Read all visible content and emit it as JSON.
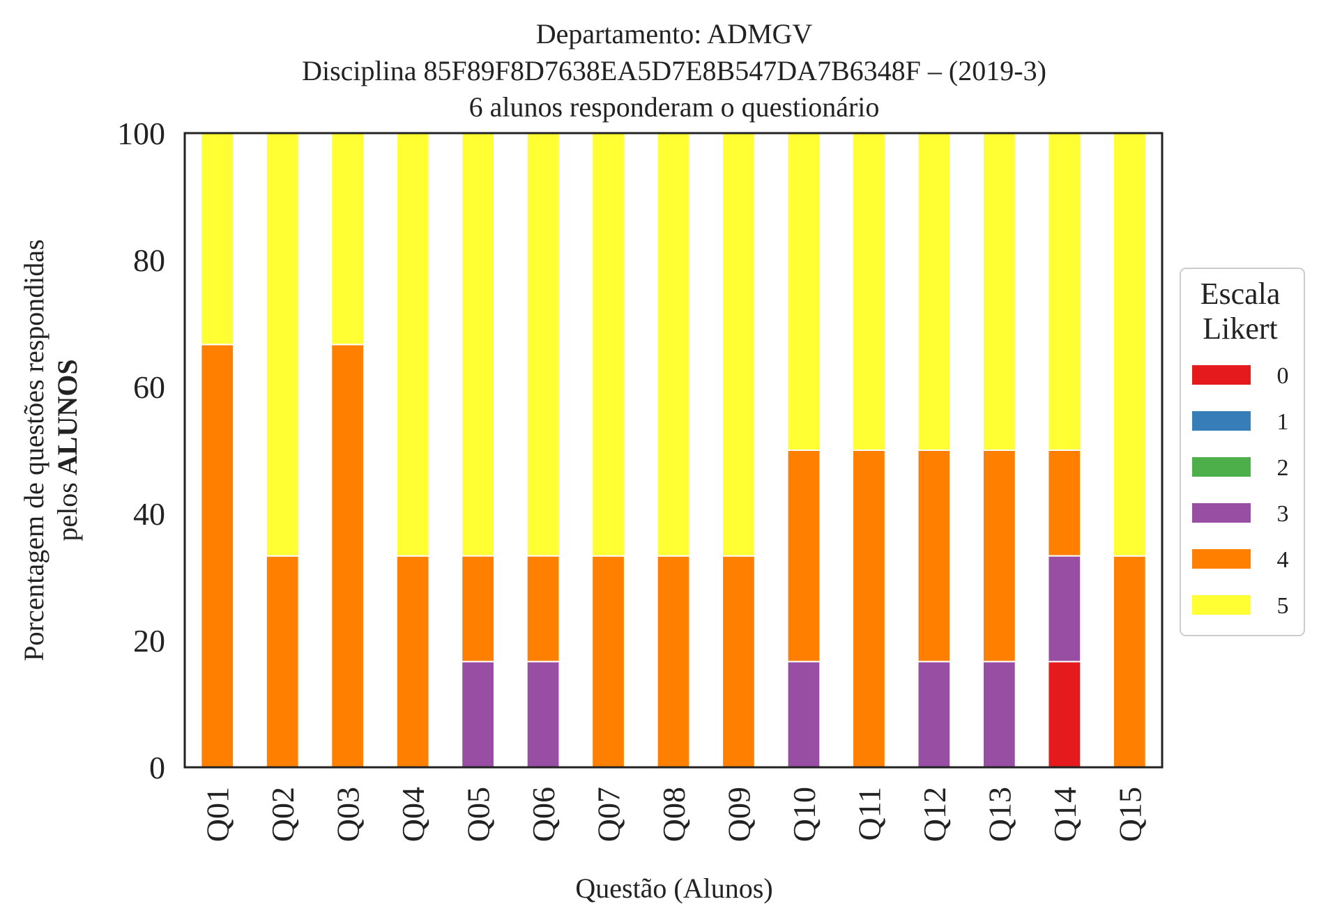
{
  "chart_data": {
    "type": "bar",
    "stacked": true,
    "title": [
      "Departamento: ADMGV",
      "Disciplina 85F89F8D7638EA5D7E8B547DA7B6348F – (2019-3)",
      "6 alunos responderam o questionário"
    ],
    "xlabel": "Questão (Alunos)",
    "ylabel": {
      "line1": "Porcentagem de questões respondidas",
      "line2_prefix": "pelos ",
      "line2_bold": "ALUNOS"
    },
    "ylim": [
      0,
      100
    ],
    "yticks": [
      "0",
      "20",
      "40",
      "60",
      "80",
      "100"
    ],
    "categories": [
      "Q01",
      "Q02",
      "Q03",
      "Q04",
      "Q05",
      "Q06",
      "Q07",
      "Q08",
      "Q09",
      "Q10",
      "Q11",
      "Q12",
      "Q13",
      "Q14",
      "Q15"
    ],
    "series": [
      {
        "name": "0",
        "color": "#e41a1c",
        "values": [
          0,
          0,
          0,
          0,
          0,
          0,
          0,
          0,
          0,
          0,
          0,
          0,
          0,
          16.67,
          0
        ]
      },
      {
        "name": "1",
        "color": "#377eb8",
        "values": [
          0,
          0,
          0,
          0,
          0,
          0,
          0,
          0,
          0,
          0,
          0,
          0,
          0,
          0,
          0
        ]
      },
      {
        "name": "2",
        "color": "#4daf4a",
        "values": [
          0,
          0,
          0,
          0,
          0,
          0,
          0,
          0,
          0,
          0,
          0,
          0,
          0,
          0,
          0
        ]
      },
      {
        "name": "3",
        "color": "#984ea3",
        "values": [
          0,
          0,
          0,
          0,
          16.67,
          16.67,
          0,
          0,
          0,
          16.67,
          0,
          16.67,
          16.67,
          16.67,
          0
        ]
      },
      {
        "name": "4",
        "color": "#ff7f00",
        "values": [
          66.67,
          33.33,
          66.67,
          33.33,
          16.67,
          16.67,
          33.33,
          33.33,
          33.33,
          33.33,
          50,
          33.33,
          33.33,
          16.67,
          33.33
        ]
      },
      {
        "name": "5",
        "color": "#ffff33",
        "values": [
          33.33,
          66.67,
          33.33,
          66.67,
          66.67,
          66.67,
          66.67,
          66.67,
          66.67,
          50,
          50,
          50,
          50,
          50,
          66.67
        ]
      }
    ],
    "grid": false,
    "legend": {
      "title": [
        "Escala",
        "Likert"
      ],
      "placement": "right"
    }
  }
}
